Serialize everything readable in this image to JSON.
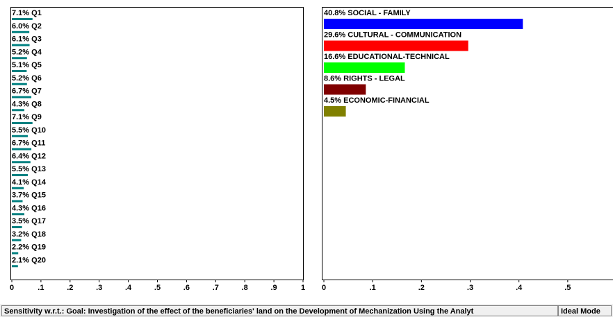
{
  "chart_data": [
    {
      "type": "hbar",
      "categories": [
        "Q1",
        "Q2",
        "Q3",
        "Q4",
        "Q5",
        "Q6",
        "Q7",
        "Q8",
        "Q9",
        "Q10",
        "Q11",
        "Q12",
        "Q13",
        "Q14",
        "Q15",
        "Q16",
        "Q17",
        "Q18",
        "Q19",
        "Q20"
      ],
      "values": [
        0.071,
        0.06,
        0.061,
        0.052,
        0.051,
        0.052,
        0.067,
        0.043,
        0.071,
        0.055,
        0.067,
        0.064,
        0.055,
        0.041,
        0.037,
        0.043,
        0.035,
        0.032,
        0.022,
        0.021
      ],
      "value_labels": [
        "7.1%",
        "6.0%",
        "6.1%",
        "5.2%",
        "5.1%",
        "5.2%",
        "6.7%",
        "4.3%",
        "7.1%",
        "5.5%",
        "6.7%",
        "6.4%",
        "5.5%",
        "4.1%",
        "3.7%",
        "4.3%",
        "3.5%",
        "3.2%",
        "2.2%",
        "2.1%"
      ],
      "color": "#008080",
      "xlim": [
        0,
        1
      ],
      "xticks": [
        0,
        {
          "value": 0.1,
          "label": ".1"
        },
        {
          "value": 0.2,
          "label": ".2"
        },
        {
          "value": 0.3,
          "label": ".3"
        },
        {
          "value": 0.4,
          "label": ".4"
        },
        {
          "value": 0.5,
          "label": ".5"
        },
        {
          "value": 0.6,
          "label": ".6"
        },
        {
          "value": 0.7,
          "label": ".7"
        },
        {
          "value": 0.8,
          "label": ".8"
        },
        {
          "value": 0.9,
          "label": ".9"
        },
        1
      ]
    },
    {
      "type": "hbar",
      "categories": [
        "SOCIAL - FAMILY",
        "CULTURAL - COMMUNICATION",
        "EDUCATIONAL-TECHNICAL",
        "RIGHTS - LEGAL",
        "ECONOMIC-FINANCIAL"
      ],
      "values": [
        0.408,
        0.296,
        0.166,
        0.086,
        0.045
      ],
      "value_labels": [
        "40.8%",
        "29.6%",
        "16.6%",
        "8.6%",
        "4.5%"
      ],
      "colors": [
        "#0000ff",
        "#ff0000",
        "#00ff00",
        "#800000",
        "#808000"
      ],
      "xlim": [
        0,
        0.59
      ],
      "xticks": [
        0,
        {
          "value": 0.1,
          "label": ".1"
        },
        {
          "value": 0.2,
          "label": ".2"
        },
        {
          "value": 0.3,
          "label": ".3"
        },
        {
          "value": 0.4,
          "label": ".4"
        },
        {
          "value": 0.5,
          "label": ".5"
        }
      ]
    }
  ],
  "status_bar": {
    "text": "Sensitivity w.r.t.: Goal: Investigation of the effect of the beneficiaries' land on the Development of Mechanization Using the Analyt",
    "mode": "Ideal Mode"
  }
}
